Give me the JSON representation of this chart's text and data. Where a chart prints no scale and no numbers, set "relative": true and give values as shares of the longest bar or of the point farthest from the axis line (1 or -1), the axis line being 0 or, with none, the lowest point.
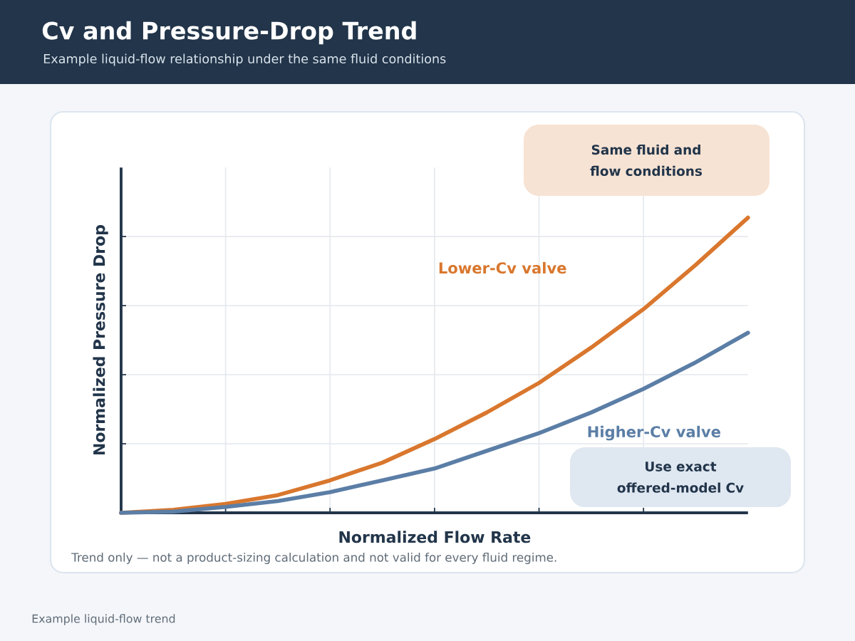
{
  "chart_data": {
    "type": "line",
    "title": "Cv and Pressure-Drop Trend",
    "subtitle": "Example liquid-flow relationship under the same fluid conditions",
    "xlabel": "Normalized Flow Rate",
    "ylabel": "Normalized Pressure Drop",
    "relative": true,
    "grid": true,
    "categories": [
      null,
      null,
      null,
      null,
      null,
      null,
      null,
      null,
      null,
      null,
      null,
      null,
      null
    ],
    "series": [
      {
        "name": "Lower-Cv valve",
        "color": "#d9772e",
        "values": [
          0,
          0.01,
          0.03,
          0.06,
          0.11,
          0.17,
          0.25,
          0.34,
          0.44,
          0.56,
          0.69,
          0.84,
          1
        ]
      },
      {
        "name": "Higher-Cv valve",
        "color": "#5b7ea6",
        "values": [
          0,
          0.004,
          0.02,
          0.04,
          0.07,
          0.11,
          0.15,
          0.21,
          0.27,
          0.34,
          0.42,
          0.51,
          0.61
        ]
      }
    ],
    "annotations": [
      "Same fluid and flow conditions",
      "Use exact offered-model Cv",
      "Trend only — not a product-sizing calculation and not valid for every fluid regime.",
      "Example liquid-flow trend"
    ]
  }
}
